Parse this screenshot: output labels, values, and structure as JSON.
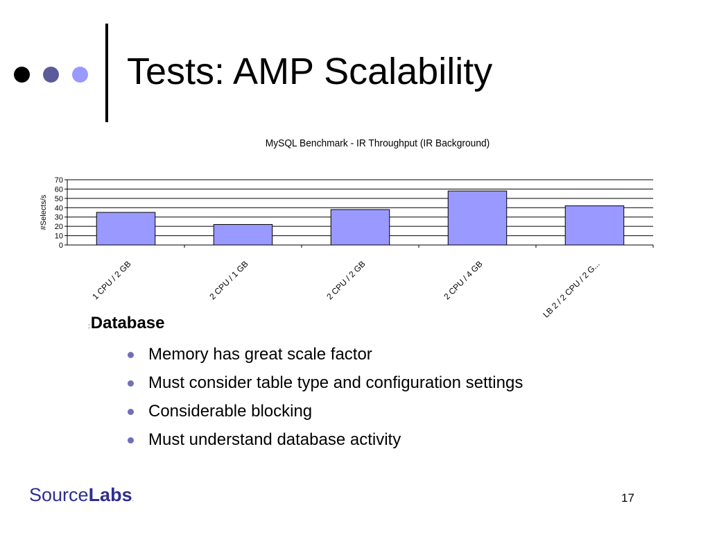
{
  "slide": {
    "title": "Tests: AMP Scalability",
    "page_number": "17",
    "decor_dots": [
      {
        "name": "black-dot",
        "color": "#000000"
      },
      {
        "name": "dark-blue-dot",
        "color": "#5b5b9b"
      },
      {
        "name": "light-blue-dot",
        "color": "#9999ff"
      }
    ]
  },
  "section": {
    "marker": ":",
    "heading": "Database"
  },
  "bullets": [
    "Memory has great scale factor",
    "Must consider table type and configuration settings",
    "Considerable blocking",
    "Must understand database activity"
  ],
  "colors": {
    "bar_fill": "#9999ff",
    "bullet": "#7070b8",
    "logo_blue": "#2e2f8e"
  },
  "logo": {
    "source": "Source",
    "labs": "Labs",
    "tm": "."
  },
  "chart_data": {
    "type": "bar",
    "title": "MySQL Benchmark - IR Throughput (IR Background)",
    "xlabel": "",
    "ylabel": "#Selects/s",
    "categories": [
      "1 CPU / 2 GB",
      "2 CPU / 1 GB",
      "2 CPU / 2 GB",
      "2 CPU / 4 GB",
      "LB 2 / 2 CPU / 2 G..."
    ],
    "values": [
      35,
      22,
      38,
      58,
      42
    ],
    "ylim": [
      0,
      70
    ],
    "yticks": [
      0,
      10,
      20,
      30,
      40,
      50,
      60,
      70
    ],
    "grid": true,
    "legend": "none"
  }
}
